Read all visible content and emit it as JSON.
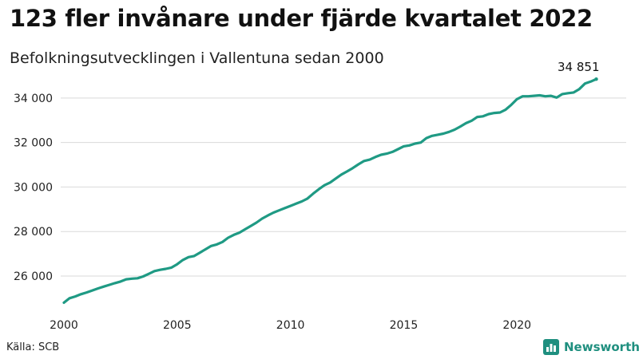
{
  "header": {
    "title": "123 fler invånare under fjärde kvartalet 2022",
    "subtitle": "Befolkningsutvecklingen i Vallentuna sedan 2000"
  },
  "footer": {
    "source": "Källa: SCB",
    "brand": "Newsworthy",
    "brand_icon": "bar-chart-logo-icon"
  },
  "colors": {
    "line": "#1f9a84",
    "grid": "#d9d9d9",
    "brand": "#1f8f7f"
  },
  "chart_data": {
    "type": "line",
    "title": "123 fler invånare under fjärde kvartalet 2022",
    "subtitle": "Befolkningsutvecklingen i Vallentuna sedan 2000",
    "xlabel": "",
    "ylabel": "",
    "xlim": [
      2000,
      2023
    ],
    "ylim": [
      24600,
      35000
    ],
    "grid": "horizontal",
    "x_ticks": [
      2000,
      2005,
      2010,
      2015,
      2020
    ],
    "x_tick_labels": [
      "2000",
      "2005",
      "2010",
      "2015",
      "2020"
    ],
    "y_ticks": [
      26000,
      28000,
      30000,
      32000,
      34000
    ],
    "y_tick_labels": [
      "26 000",
      "28 000",
      "30 000",
      "32 000",
      "34 000"
    ],
    "end_label": "34 851",
    "series": [
      {
        "values": [
          [
            2000.0,
            24800
          ],
          [
            2000.25,
            25000
          ],
          [
            2000.5,
            25080
          ],
          [
            2000.75,
            25180
          ],
          [
            2001.0,
            25260
          ],
          [
            2001.25,
            25350
          ],
          [
            2001.5,
            25440
          ],
          [
            2001.75,
            25520
          ],
          [
            2002.0,
            25600
          ],
          [
            2002.25,
            25680
          ],
          [
            2002.5,
            25750
          ],
          [
            2002.75,
            25850
          ],
          [
            2003.0,
            25880
          ],
          [
            2003.25,
            25900
          ],
          [
            2003.5,
            25980
          ],
          [
            2003.75,
            26100
          ],
          [
            2004.0,
            26220
          ],
          [
            2004.25,
            26280
          ],
          [
            2004.5,
            26320
          ],
          [
            2004.75,
            26380
          ],
          [
            2005.0,
            26530
          ],
          [
            2005.25,
            26720
          ],
          [
            2005.5,
            26850
          ],
          [
            2005.75,
            26900
          ],
          [
            2006.0,
            27050
          ],
          [
            2006.25,
            27200
          ],
          [
            2006.5,
            27350
          ],
          [
            2006.75,
            27420
          ],
          [
            2007.0,
            27530
          ],
          [
            2007.25,
            27720
          ],
          [
            2007.5,
            27850
          ],
          [
            2007.75,
            27950
          ],
          [
            2008.0,
            28100
          ],
          [
            2008.25,
            28250
          ],
          [
            2008.5,
            28400
          ],
          [
            2008.75,
            28580
          ],
          [
            2009.0,
            28720
          ],
          [
            2009.25,
            28850
          ],
          [
            2009.5,
            28950
          ],
          [
            2009.75,
            29050
          ],
          [
            2010.0,
            29150
          ],
          [
            2010.25,
            29250
          ],
          [
            2010.5,
            29350
          ],
          [
            2010.75,
            29480
          ],
          [
            2011.0,
            29700
          ],
          [
            2011.25,
            29900
          ],
          [
            2011.5,
            30080
          ],
          [
            2011.75,
            30200
          ],
          [
            2012.0,
            30380
          ],
          [
            2012.25,
            30560
          ],
          [
            2012.5,
            30700
          ],
          [
            2012.75,
            30850
          ],
          [
            2013.0,
            31020
          ],
          [
            2013.25,
            31170
          ],
          [
            2013.5,
            31230
          ],
          [
            2013.75,
            31350
          ],
          [
            2014.0,
            31450
          ],
          [
            2014.25,
            31500
          ],
          [
            2014.5,
            31580
          ],
          [
            2014.75,
            31700
          ],
          [
            2015.0,
            31830
          ],
          [
            2015.25,
            31870
          ],
          [
            2015.5,
            31950
          ],
          [
            2015.75,
            32000
          ],
          [
            2016.0,
            32200
          ],
          [
            2016.25,
            32300
          ],
          [
            2016.5,
            32350
          ],
          [
            2016.75,
            32400
          ],
          [
            2017.0,
            32480
          ],
          [
            2017.25,
            32580
          ],
          [
            2017.5,
            32720
          ],
          [
            2017.75,
            32870
          ],
          [
            2018.0,
            32980
          ],
          [
            2018.25,
            33150
          ],
          [
            2018.5,
            33180
          ],
          [
            2018.75,
            33280
          ],
          [
            2019.0,
            33330
          ],
          [
            2019.25,
            33350
          ],
          [
            2019.5,
            33480
          ],
          [
            2019.75,
            33700
          ],
          [
            2020.0,
            33950
          ],
          [
            2020.25,
            34080
          ],
          [
            2020.5,
            34080
          ],
          [
            2020.75,
            34100
          ],
          [
            2021.0,
            34120
          ],
          [
            2021.25,
            34080
          ],
          [
            2021.5,
            34100
          ],
          [
            2021.75,
            34020
          ],
          [
            2022.0,
            34180
          ],
          [
            2022.25,
            34220
          ],
          [
            2022.5,
            34250
          ],
          [
            2022.75,
            34400
          ],
          [
            2023.0,
            34650
          ],
          [
            2023.25,
            34740
          ],
          [
            2023.5,
            34851
          ]
        ]
      }
    ]
  }
}
